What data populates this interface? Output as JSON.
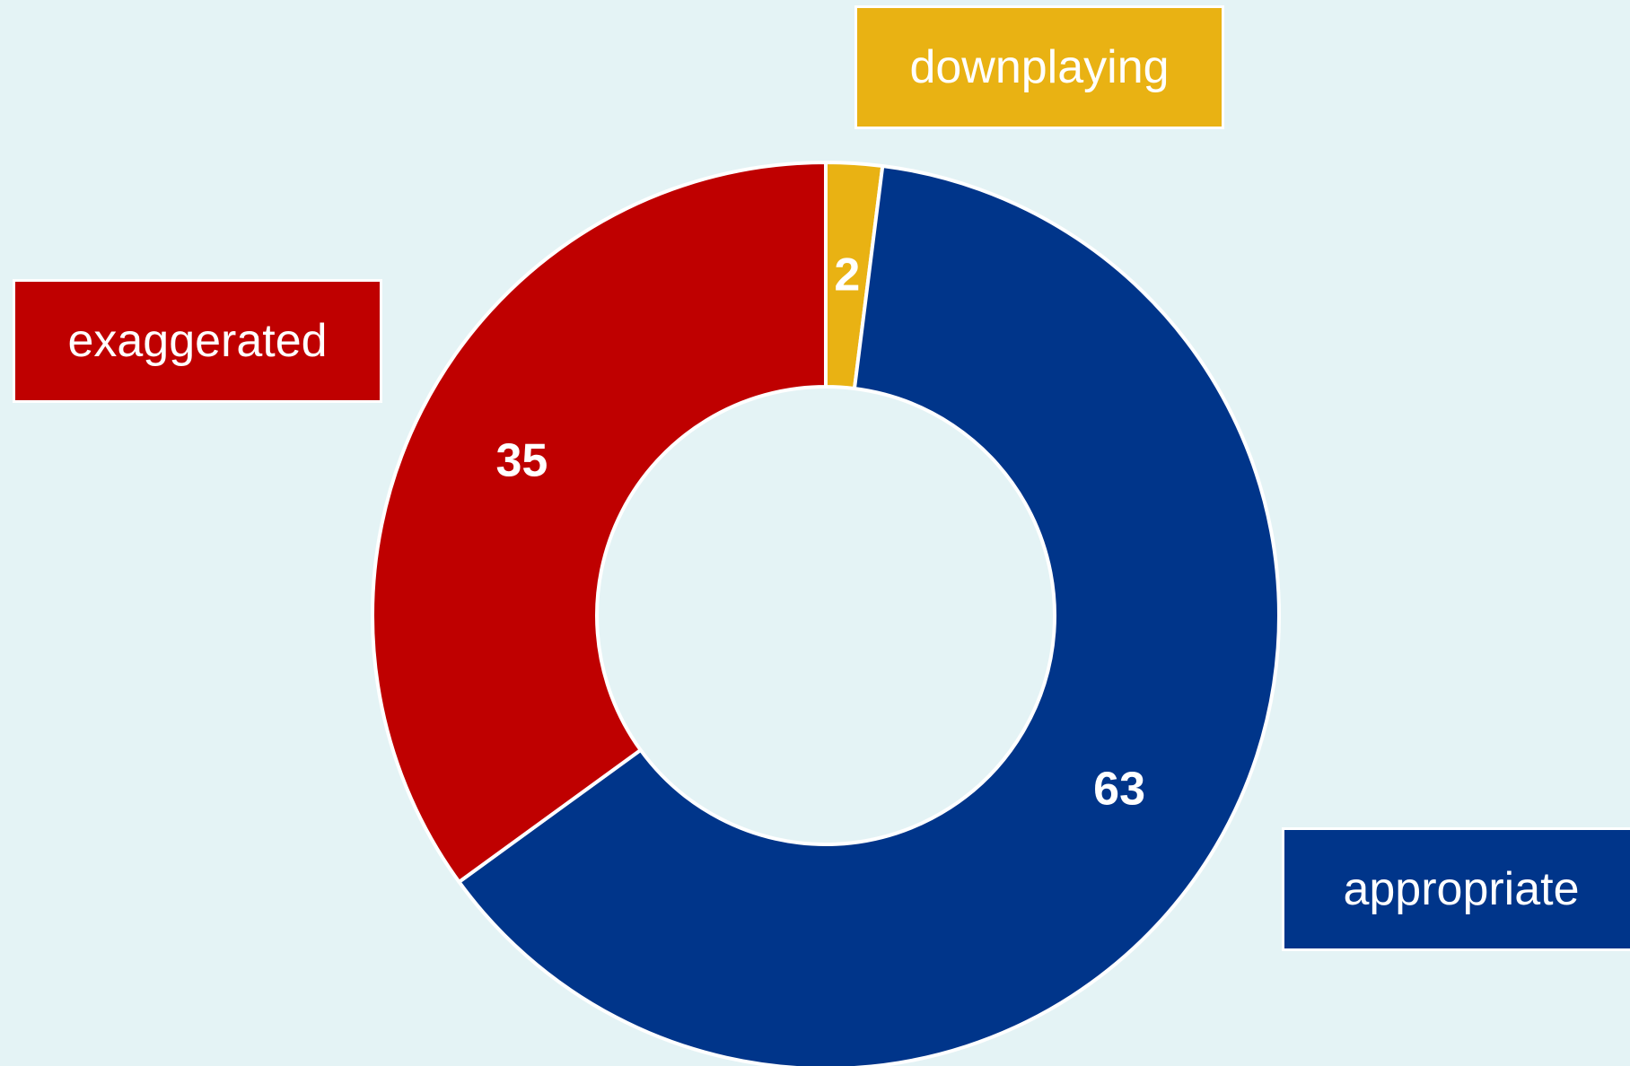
{
  "chart_data": {
    "type": "pie",
    "variant": "donut",
    "slices": [
      {
        "label": "downplaying",
        "value": 2,
        "color": "#e9b213"
      },
      {
        "label": "appropriate",
        "value": 63,
        "color": "#00358a"
      },
      {
        "label": "exaggerated",
        "value": 35,
        "color": "#bf0000"
      }
    ],
    "background_color": "#e4f3f5",
    "legend_placement": "callout boxes around the ring"
  }
}
